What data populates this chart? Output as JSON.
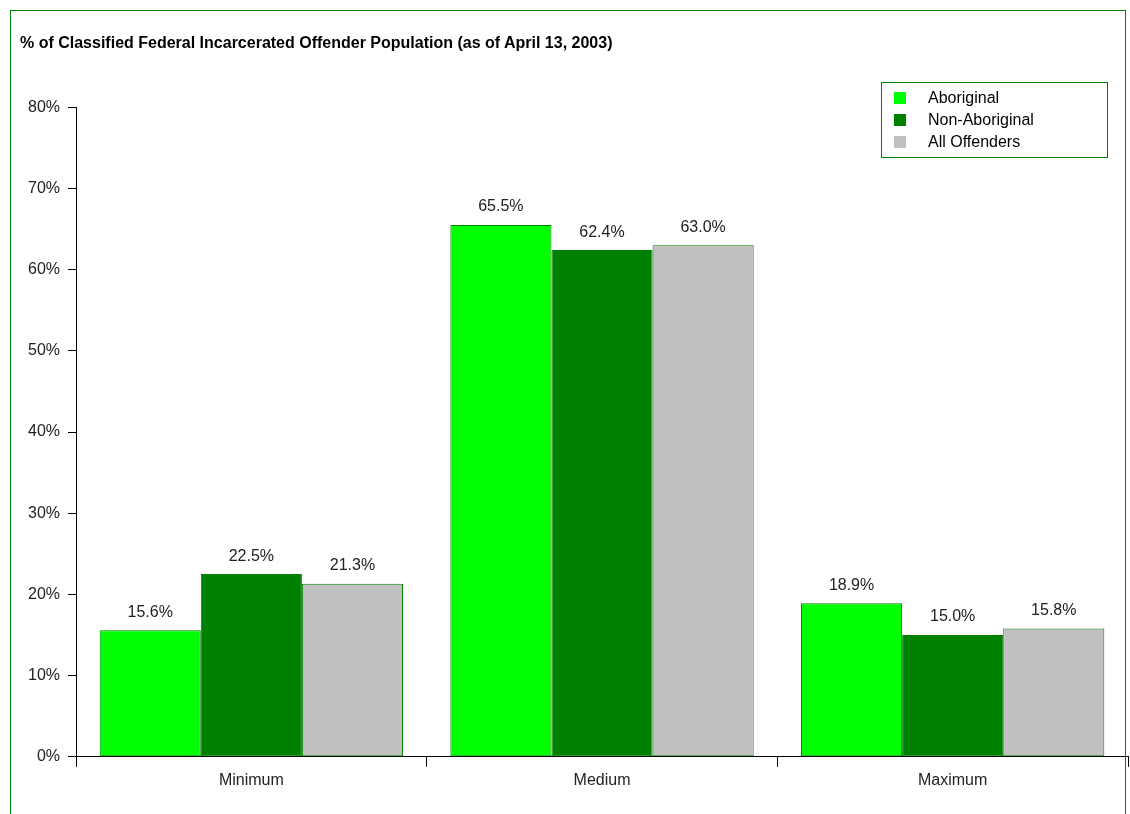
{
  "chart_data": {
    "type": "bar",
    "title": "% of Classified Federal Incarcerated Offender Population (as of April 13, 2003)",
    "categories": [
      "Minimum",
      "Medium",
      "Maximum"
    ],
    "series": [
      {
        "name": "Aboriginal",
        "color": "#00ff00",
        "values": [
          15.6,
          65.5,
          18.9
        ],
        "value_labels": [
          "15.6%",
          "65.5%",
          "18.9%"
        ]
      },
      {
        "name": "Non-Aboriginal",
        "color": "#008000",
        "values": [
          22.5,
          62.4,
          15.0
        ],
        "value_labels": [
          "22.5%",
          "62.4%",
          "15.0%"
        ]
      },
      {
        "name": "All Offenders",
        "color": "#c0c0c0",
        "values": [
          21.3,
          63.0,
          15.8
        ],
        "value_labels": [
          "21.3%",
          "63.0%",
          "15.8%"
        ]
      }
    ],
    "ylim": [
      0,
      80
    ],
    "yticks": [
      {
        "value": 0,
        "label": "0%"
      },
      {
        "value": 10,
        "label": "10%"
      },
      {
        "value": 20,
        "label": "20%"
      },
      {
        "value": 30,
        "label": "30%"
      },
      {
        "value": 40,
        "label": "40%"
      },
      {
        "value": 50,
        "label": "50%"
      },
      {
        "value": 60,
        "label": "60%"
      },
      {
        "value": 70,
        "label": "70%"
      },
      {
        "value": 80,
        "label": "80%"
      }
    ],
    "grid": false,
    "legend": "top right"
  }
}
